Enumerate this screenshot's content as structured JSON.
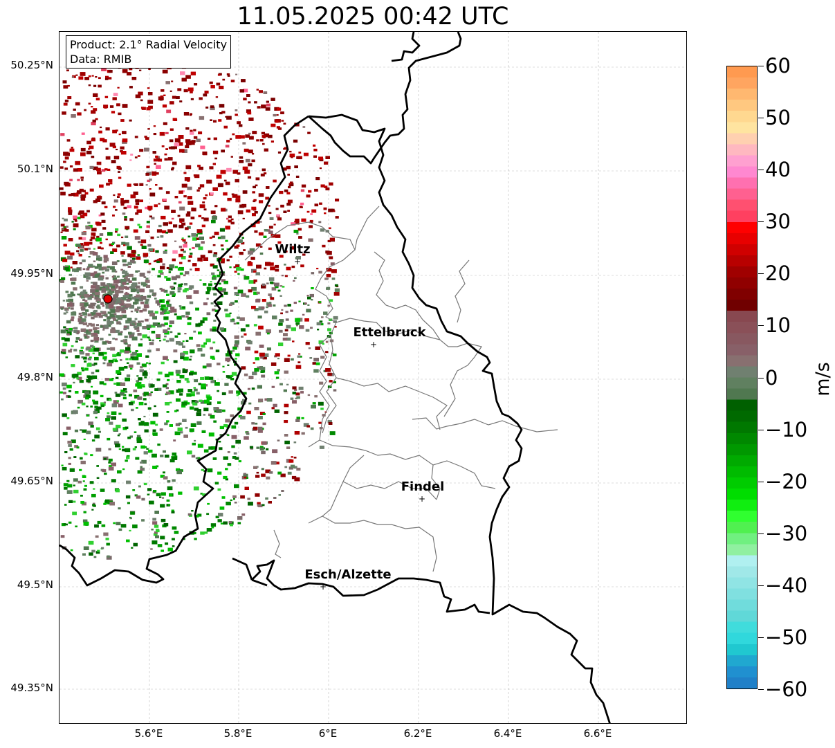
{
  "title": "11.05.2025 00:42 UTC",
  "info_box": {
    "product": "Product: 2.1° Radial Velocity",
    "data": "Data: RMIB"
  },
  "lat_labels": [
    "50.25°N",
    "50.1°N",
    "49.95°N",
    "49.8°N",
    "49.65°N",
    "49.5°N",
    "49.35°N"
  ],
  "lon_labels": [
    "5.6°E",
    "5.8°E",
    "6°E",
    "6.2°E",
    "6.4°E",
    "6.6°E"
  ],
  "cities": [
    {
      "name": "Wiltz"
    },
    {
      "name": "Ettelbruck"
    },
    {
      "name": "Findel"
    },
    {
      "name": "Esch/Alzette"
    }
  ],
  "colorbar": {
    "unit": "m/s",
    "ticks": [
      "60",
      "50",
      "40",
      "30",
      "20",
      "10",
      "0",
      "−10",
      "−20",
      "−30",
      "−40",
      "−50",
      "−60"
    ],
    "range": [
      -60,
      60
    ],
    "colors_top_to_bottom": [
      "#ff9a50",
      "#ffa560",
      "#ffb870",
      "#ffc880",
      "#ffd890",
      "#ffe4a0",
      "#ffd0b0",
      "#ffb8c0",
      "#ffa0d0",
      "#ff88d0",
      "#ff70b0",
      "#ff6090",
      "#ff5070",
      "#ff4060",
      "#ff0000",
      "#e80000",
      "#d00000",
      "#b80000",
      "#a00000",
      "#900000",
      "#800000",
      "#700000",
      "#884850",
      "#8a5058",
      "#885860",
      "#886068",
      "#887070",
      "#708070",
      "#608060",
      "#507850",
      "#006000",
      "#006a00",
      "#007800",
      "#008800",
      "#009800",
      "#00aa00",
      "#00bb00",
      "#00cc00",
      "#00dd00",
      "#10ee10",
      "#30ff30",
      "#50f050",
      "#70f080",
      "#90f0a0",
      "#b0f0f0",
      "#a0e8e8",
      "#90e4e4",
      "#80e0e0",
      "#70dcdc",
      "#60d8d8",
      "#40dcdc",
      "#30d8dc",
      "#20c8d0",
      "#20a8d0",
      "#2090d0",
      "#2080c8"
    ]
  },
  "radar_site": {
    "color": "#e00000"
  }
}
